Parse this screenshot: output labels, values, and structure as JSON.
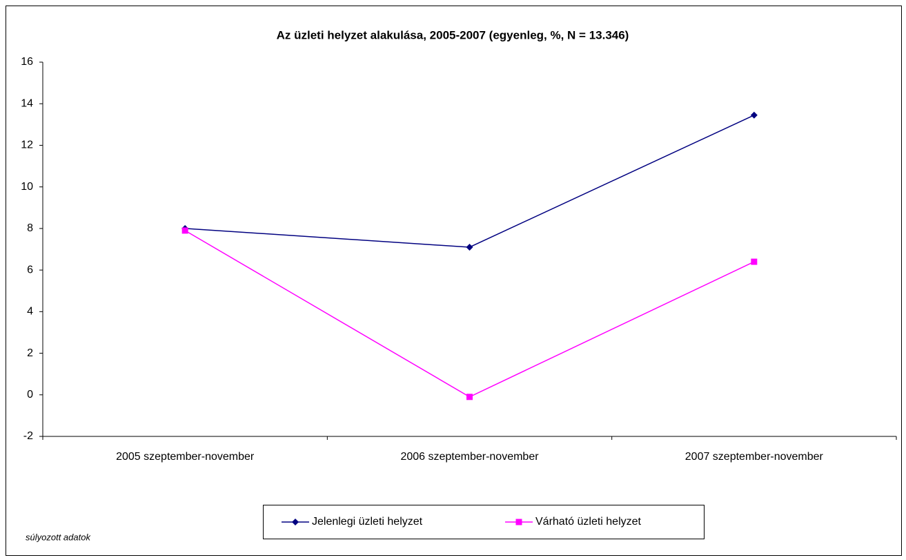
{
  "chart_data": {
    "type": "line",
    "title": "Az üzleti helyzet alakulása, 2005-2007 (egyenleg, %, N = 13.346)",
    "categories": [
      "2005 szeptember-november",
      "2006 szeptember-november",
      "2007 szeptember-november"
    ],
    "series": [
      {
        "name": "Jelenlegi üzleti helyzet",
        "color": "#000080",
        "marker": "diamond",
        "values": [
          8.0,
          7.1,
          13.45
        ]
      },
      {
        "name": "Várható üzleti helyzet",
        "color": "#ff00ff",
        "marker": "square",
        "values": [
          7.9,
          -0.1,
          6.4
        ]
      }
    ],
    "ylim": [
      -2,
      16
    ],
    "yticks": [
      -2,
      0,
      2,
      4,
      6,
      8,
      10,
      12,
      14,
      16
    ],
    "grid": false,
    "legend": "bottom",
    "note": "súlyozott adatok"
  }
}
